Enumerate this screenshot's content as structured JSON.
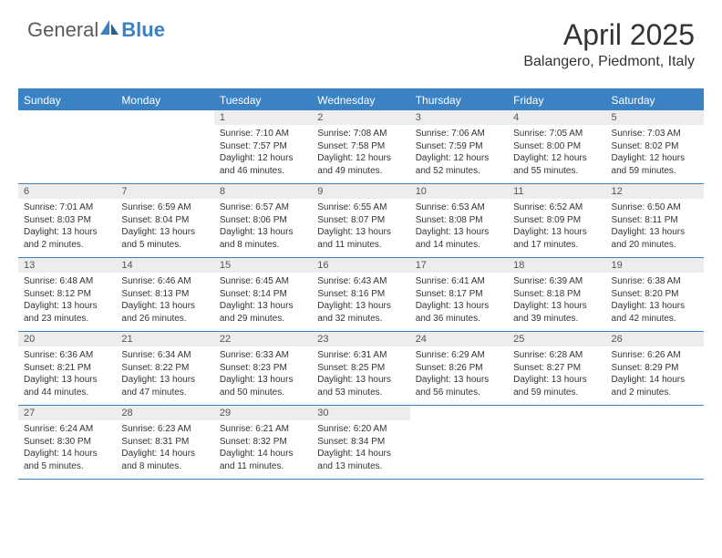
{
  "logo": {
    "general": "General",
    "blue": "Blue"
  },
  "title": "April 2025",
  "subtitle": "Balangero, Piedmont, Italy",
  "colors": {
    "accent": "#3b82c4",
    "header_bg": "#3b82c4",
    "header_text": "#ffffff",
    "daynum_bg": "#ededed",
    "text": "#333333",
    "border": "#3b82c4"
  },
  "weekdays": [
    "Sunday",
    "Monday",
    "Tuesday",
    "Wednesday",
    "Thursday",
    "Friday",
    "Saturday"
  ],
  "weeks": [
    [
      {
        "empty": true
      },
      {
        "empty": true
      },
      {
        "day": 1,
        "sunrise": "7:10 AM",
        "sunset": "7:57 PM",
        "daylight": "12 hours and 46 minutes."
      },
      {
        "day": 2,
        "sunrise": "7:08 AM",
        "sunset": "7:58 PM",
        "daylight": "12 hours and 49 minutes."
      },
      {
        "day": 3,
        "sunrise": "7:06 AM",
        "sunset": "7:59 PM",
        "daylight": "12 hours and 52 minutes."
      },
      {
        "day": 4,
        "sunrise": "7:05 AM",
        "sunset": "8:00 PM",
        "daylight": "12 hours and 55 minutes."
      },
      {
        "day": 5,
        "sunrise": "7:03 AM",
        "sunset": "8:02 PM",
        "daylight": "12 hours and 59 minutes."
      }
    ],
    [
      {
        "day": 6,
        "sunrise": "7:01 AM",
        "sunset": "8:03 PM",
        "daylight": "13 hours and 2 minutes."
      },
      {
        "day": 7,
        "sunrise": "6:59 AM",
        "sunset": "8:04 PM",
        "daylight": "13 hours and 5 minutes."
      },
      {
        "day": 8,
        "sunrise": "6:57 AM",
        "sunset": "8:06 PM",
        "daylight": "13 hours and 8 minutes."
      },
      {
        "day": 9,
        "sunrise": "6:55 AM",
        "sunset": "8:07 PM",
        "daylight": "13 hours and 11 minutes."
      },
      {
        "day": 10,
        "sunrise": "6:53 AM",
        "sunset": "8:08 PM",
        "daylight": "13 hours and 14 minutes."
      },
      {
        "day": 11,
        "sunrise": "6:52 AM",
        "sunset": "8:09 PM",
        "daylight": "13 hours and 17 minutes."
      },
      {
        "day": 12,
        "sunrise": "6:50 AM",
        "sunset": "8:11 PM",
        "daylight": "13 hours and 20 minutes."
      }
    ],
    [
      {
        "day": 13,
        "sunrise": "6:48 AM",
        "sunset": "8:12 PM",
        "daylight": "13 hours and 23 minutes."
      },
      {
        "day": 14,
        "sunrise": "6:46 AM",
        "sunset": "8:13 PM",
        "daylight": "13 hours and 26 minutes."
      },
      {
        "day": 15,
        "sunrise": "6:45 AM",
        "sunset": "8:14 PM",
        "daylight": "13 hours and 29 minutes."
      },
      {
        "day": 16,
        "sunrise": "6:43 AM",
        "sunset": "8:16 PM",
        "daylight": "13 hours and 32 minutes."
      },
      {
        "day": 17,
        "sunrise": "6:41 AM",
        "sunset": "8:17 PM",
        "daylight": "13 hours and 36 minutes."
      },
      {
        "day": 18,
        "sunrise": "6:39 AM",
        "sunset": "8:18 PM",
        "daylight": "13 hours and 39 minutes."
      },
      {
        "day": 19,
        "sunrise": "6:38 AM",
        "sunset": "8:20 PM",
        "daylight": "13 hours and 42 minutes."
      }
    ],
    [
      {
        "day": 20,
        "sunrise": "6:36 AM",
        "sunset": "8:21 PM",
        "daylight": "13 hours and 44 minutes."
      },
      {
        "day": 21,
        "sunrise": "6:34 AM",
        "sunset": "8:22 PM",
        "daylight": "13 hours and 47 minutes."
      },
      {
        "day": 22,
        "sunrise": "6:33 AM",
        "sunset": "8:23 PM",
        "daylight": "13 hours and 50 minutes."
      },
      {
        "day": 23,
        "sunrise": "6:31 AM",
        "sunset": "8:25 PM",
        "daylight": "13 hours and 53 minutes."
      },
      {
        "day": 24,
        "sunrise": "6:29 AM",
        "sunset": "8:26 PM",
        "daylight": "13 hours and 56 minutes."
      },
      {
        "day": 25,
        "sunrise": "6:28 AM",
        "sunset": "8:27 PM",
        "daylight": "13 hours and 59 minutes."
      },
      {
        "day": 26,
        "sunrise": "6:26 AM",
        "sunset": "8:29 PM",
        "daylight": "14 hours and 2 minutes."
      }
    ],
    [
      {
        "day": 27,
        "sunrise": "6:24 AM",
        "sunset": "8:30 PM",
        "daylight": "14 hours and 5 minutes."
      },
      {
        "day": 28,
        "sunrise": "6:23 AM",
        "sunset": "8:31 PM",
        "daylight": "14 hours and 8 minutes."
      },
      {
        "day": 29,
        "sunrise": "6:21 AM",
        "sunset": "8:32 PM",
        "daylight": "14 hours and 11 minutes."
      },
      {
        "day": 30,
        "sunrise": "6:20 AM",
        "sunset": "8:34 PM",
        "daylight": "14 hours and 13 minutes."
      },
      {
        "empty": true
      },
      {
        "empty": true
      },
      {
        "empty": true
      }
    ]
  ],
  "labels": {
    "sunrise": "Sunrise:",
    "sunset": "Sunset:",
    "daylight": "Daylight:"
  }
}
